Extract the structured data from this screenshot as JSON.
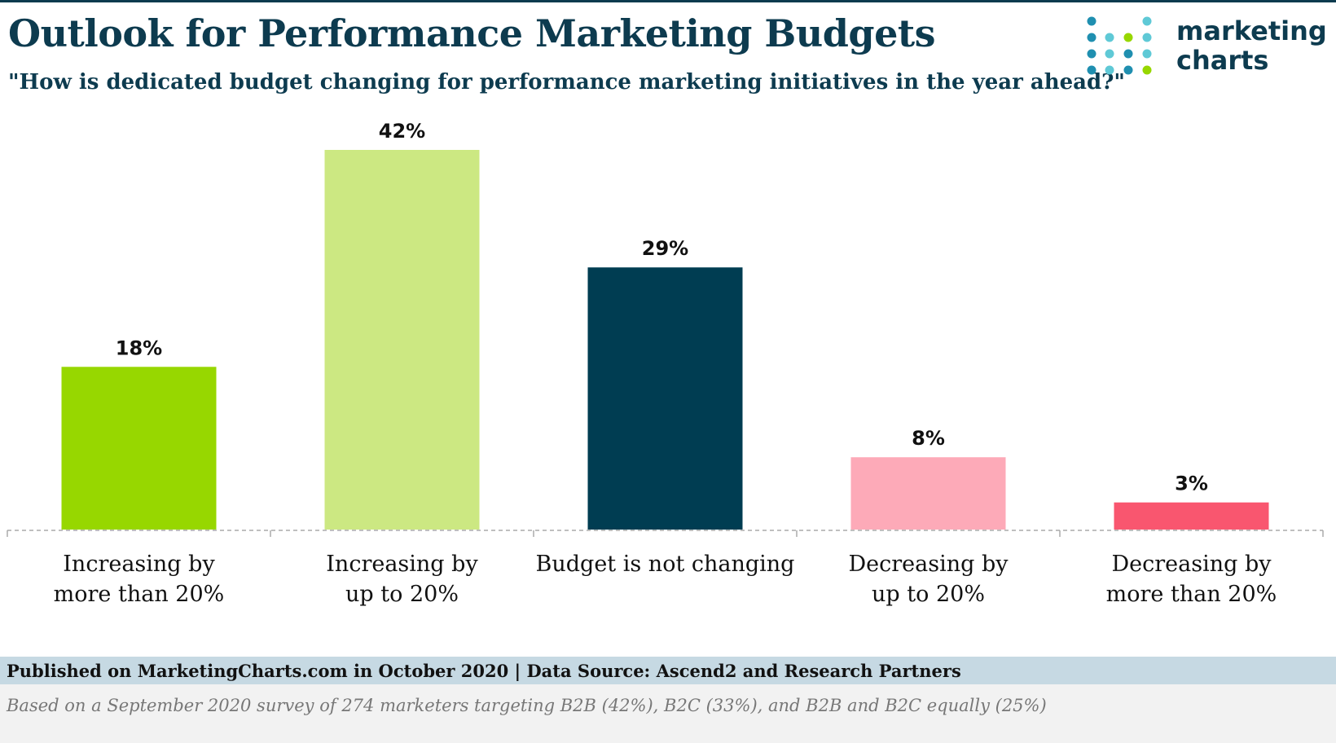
{
  "header": {
    "title": "Outlook for Performance Marketing Budgets",
    "subtitle": "\"How is dedicated budget changing for performance marketing initiatives in the year ahead?\""
  },
  "logo": {
    "line1": "marketing",
    "line2": "charts"
  },
  "chart_data": {
    "type": "bar",
    "categories": [
      [
        "Increasing by",
        "more than 20%"
      ],
      [
        "Increasing by",
        "up to 20%"
      ],
      [
        "Budget is not changing"
      ],
      [
        "Decreasing by",
        "up to 20%"
      ],
      [
        "Decreasing by",
        "more than 20%"
      ]
    ],
    "values": [
      18,
      42,
      29,
      8,
      3
    ],
    "data_labels": [
      "18%",
      "42%",
      "29%",
      "8%",
      "3%"
    ],
    "colors": [
      "#97d700",
      "#cce882",
      "#003d52",
      "#fdaab8",
      "#f9566f"
    ],
    "ylim": [
      0,
      42
    ],
    "grid": false,
    "legend": "none"
  },
  "footer": {
    "source": "Published on MarketingCharts.com in October 2020 | Data Source: Ascend2 and Research Partners",
    "note": "Based on a September 2020 survey of 274 marketers targeting B2B (42%), B2C (33%), and B2B and B2C equally (25%)"
  }
}
